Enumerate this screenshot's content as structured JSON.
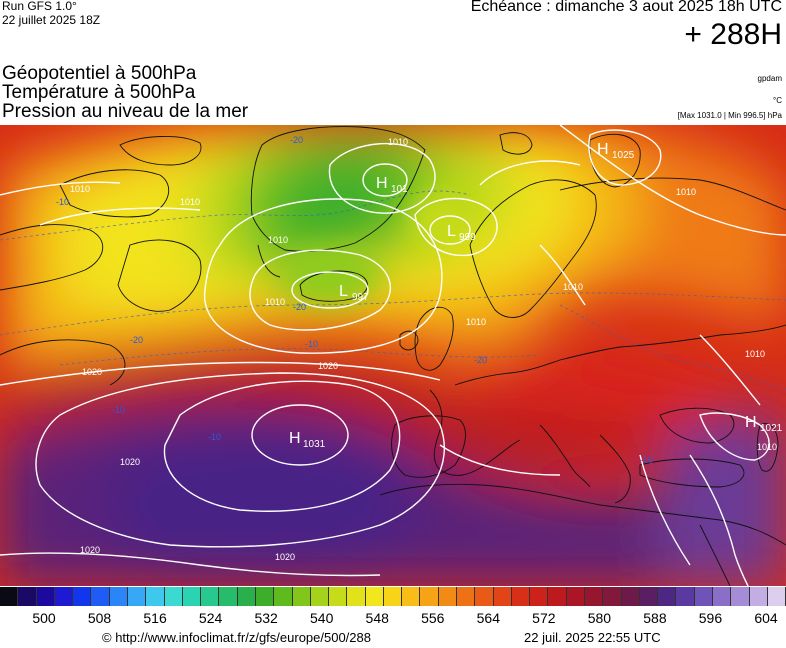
{
  "header": {
    "run": "Run GFS 1.0°",
    "run_date": "22 juillet 2025 18Z",
    "echeance": "Echéance : dimanche 3 aout 2025 18h UTC",
    "hour": "+ 288H",
    "titles": [
      "Géopotentiel à 500hPa",
      "Température à 500hPa",
      "Pression au niveau de la mer"
    ],
    "units": {
      "geopotential": "gpdam",
      "temperature": "°C"
    },
    "minmax": "[Max 1031.0 | Min 996.5] hPa"
  },
  "map": {
    "pressure_centers": [
      {
        "type": "H",
        "value": "1031"
      },
      {
        "type": "H",
        "value": "1025"
      },
      {
        "type": "H",
        "value": "1021"
      },
      {
        "type": "H",
        "value": "101"
      },
      {
        "type": "L",
        "value": "999"
      },
      {
        "type": "L",
        "value": "997"
      }
    ],
    "isobar_labels": [
      "1010",
      "1010",
      "1010",
      "1010",
      "1010",
      "1010",
      "1020",
      "1020",
      "1020",
      "1020",
      "1020",
      "1010",
      "1010",
      "1010",
      "1010"
    ],
    "temperature_labels": [
      "-20",
      "-20",
      "-20",
      "-20",
      "-10",
      "-10",
      "-10",
      "-10",
      "-10"
    ]
  },
  "scale": {
    "colors": [
      "#0a0a14",
      "#1a0a66",
      "#1c0a9e",
      "#1e1ad1",
      "#1236ee",
      "#1f5cf5",
      "#2b85f7",
      "#36a8f5",
      "#3fc8ee",
      "#3adad2",
      "#2ad4b2",
      "#27c98f",
      "#26bc6c",
      "#2ab04a",
      "#3dae2a",
      "#5fba1e",
      "#82c61c",
      "#a5d21a",
      "#c6dc18",
      "#e2e21a",
      "#f2e61c",
      "#f8d419",
      "#f8bd17",
      "#f6a416",
      "#f28b16",
      "#ee7215",
      "#e95a16",
      "#e24317",
      "#d82f18",
      "#cc2219",
      "#bd1a1f",
      "#ab1626",
      "#97162f",
      "#82183b",
      "#6c1a4a",
      "#5a1f62",
      "#4d2782",
      "#5a3aa0",
      "#6f53b8",
      "#8a6ec8",
      "#a68cd6",
      "#c2aee2",
      "#dccfee"
    ],
    "labels": [
      "500",
      "508",
      "516",
      "524",
      "532",
      "540",
      "548",
      "556",
      "564",
      "572",
      "580",
      "588",
      "596",
      "604"
    ]
  },
  "footer": {
    "url": "© http://www.infoclimat.fr/z/gfs/europe/500/288",
    "time": "22 juil. 2025 22:55 UTC"
  }
}
